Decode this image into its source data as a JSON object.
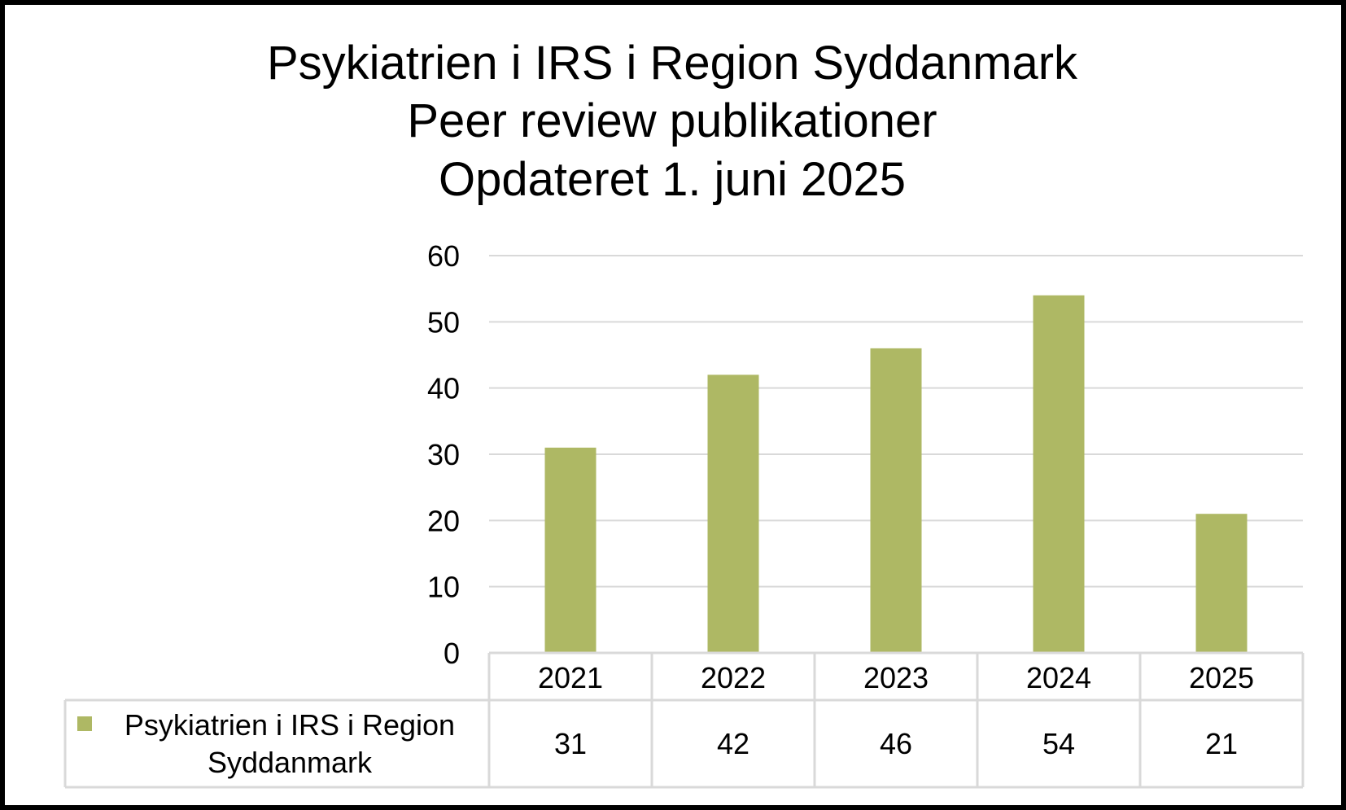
{
  "chart_data": {
    "type": "bar",
    "title_lines": [
      "Psykiatrien i IRS i Region Syddanmark",
      "Peer review publikationer",
      "Opdateret 1. juni 2025"
    ],
    "categories": [
      "2021",
      "2022",
      "2023",
      "2024",
      "2025"
    ],
    "series": [
      {
        "name": "Psykiatrien i IRS i Region Syddanmark",
        "values": [
          31,
          42,
          46,
          54,
          21
        ],
        "color": "#AEB864"
      }
    ],
    "legend_lines": [
      "Psykiatrien i IRS i Region",
      "Syddanmark"
    ],
    "yticks": [
      "0",
      "10",
      "20",
      "30",
      "40",
      "50",
      "60"
    ],
    "ylim": [
      0,
      60
    ],
    "grid": true,
    "legend": "data-table",
    "data_table": true
  }
}
